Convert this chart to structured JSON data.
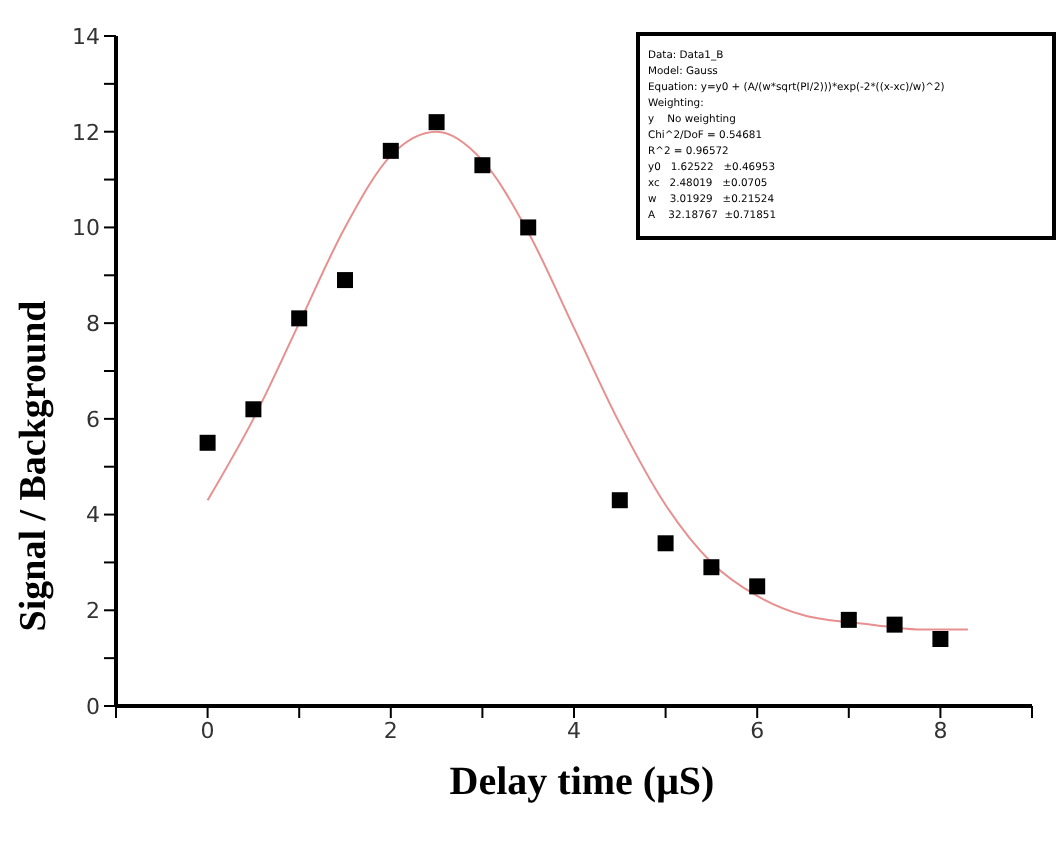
{
  "chart_data": {
    "type": "scatter",
    "xlabel": "Delay time (μS)",
    "ylabel": "Signal / Background",
    "xlim": [
      -1,
      9
    ],
    "xticks": [
      {
        "value": -1,
        "label": null
      },
      0,
      {
        "value": 1,
        "label": null
      },
      2,
      {
        "value": 3,
        "label": null
      },
      4,
      {
        "value": 5,
        "label": null
      },
      6,
      {
        "value": 7,
        "label": null
      },
      8,
      {
        "value": 9,
        "label": null
      }
    ],
    "ylim": [
      0,
      14
    ],
    "yticks": [
      0,
      {
        "value": 1,
        "label": null
      },
      2,
      {
        "value": 3,
        "label": null
      },
      4,
      {
        "value": 5,
        "label": null
      },
      6,
      {
        "value": 7,
        "label": null
      },
      8,
      {
        "value": 9,
        "label": null
      },
      10,
      {
        "value": 11,
        "label": null
      },
      12,
      {
        "value": 13,
        "label": null
      },
      14
    ],
    "grid": false,
    "marker": "square",
    "series": [
      {
        "color": "#000000",
        "x": [
          0,
          0.5,
          1,
          1.5,
          2,
          2.5,
          3,
          3.5,
          4.5,
          5,
          5.5,
          6,
          7,
          7.5,
          8
        ],
        "values": [
          5.5,
          6.2,
          8.1,
          8.9,
          11.6,
          12.2,
          11.3,
          10.0,
          4.3,
          3.4,
          2.9,
          2.5,
          1.8,
          1.7,
          1.4
        ]
      },
      {
        "type": "line",
        "color": "#e89090",
        "marker": "none",
        "line_style": "solid",
        "x": [
          0,
          0.5,
          1,
          1.5,
          2,
          2.5,
          3,
          3.5,
          4,
          4.5,
          5,
          5.5,
          6,
          6.5,
          7.25,
          7.75,
          8,
          8.3
        ],
        "values": [
          4.3,
          6.0,
          8.0,
          10.0,
          11.5,
          12.0,
          11.4,
          9.9,
          7.9,
          5.9,
          4.2,
          3.0,
          2.3,
          1.9,
          1.7,
          1.6,
          1.6,
          1.6
        ]
      }
    ],
    "annotations": [
      "Data: Data1_B",
      "Model: Gauss",
      "Equation: y=y0 + (A/(w*sqrt(PI/2)))*exp(-2*((x-xc)/w)^2)",
      "Weighting:",
      "y    No weighting",
      "Chi^2/DoF = 0.54681",
      "R^2 = 0.96572",
      "y0   1.62522   ±0.46953",
      "xc   2.48019   ±0.0705",
      "w    3.01929   ±0.21524",
      "A    32.18767  ±0.71851"
    ]
  }
}
